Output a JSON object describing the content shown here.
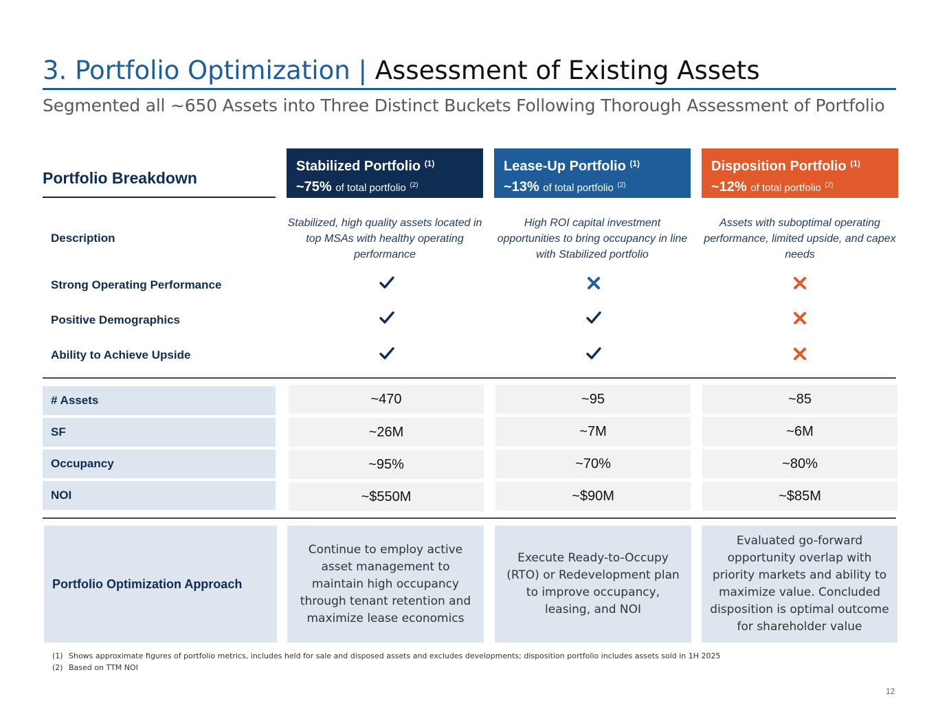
{
  "title": {
    "lead": "3. Portfolio Optimization",
    "separator": "|",
    "rest": "Assessment of Existing Assets"
  },
  "subtitle": "Segmented all ~650 Assets into Three Distinct Buckets Following Thorough Assessment of Portfolio",
  "breakdown_label": "Portfolio Breakdown",
  "columns": [
    {
      "name": "Stabilized Portfolio",
      "name_note": "(1)",
      "share": "~75%",
      "share_text": "of total portfolio",
      "share_note": "(2)",
      "color": "#0f2d52",
      "description": "Stabilized, high quality assets located in top MSAs with healthy operating performance",
      "checks": [
        "check",
        "check",
        "check"
      ],
      "metrics": [
        "~470",
        "~26M",
        "~95%",
        "~$550M"
      ],
      "approach": "Continue to employ active asset management to maintain high occupancy through tenant retention and maximize lease economics"
    },
    {
      "name": "Lease-Up Portfolio",
      "name_note": "(1)",
      "share": "~13%",
      "share_text": "of total portfolio",
      "share_note": "(2)",
      "color": "#1f5d9a",
      "description": "High ROI capital investment opportunities to bring occupancy in line with Stabilized portfolio",
      "checks": [
        "cross",
        "check",
        "check"
      ],
      "metrics": [
        "~95",
        "~7M",
        "~70%",
        "~$90M"
      ],
      "approach": "Execute Ready-to-Occupy (RTO) or Redevelopment plan to improve occupancy, leasing, and NOI"
    },
    {
      "name": "Disposition Portfolio",
      "name_note": "(1)",
      "share": "~12%",
      "share_text": "of total portfolio",
      "share_note": "(2)",
      "color": "#e05a2b",
      "description": "Assets with suboptimal operating performance, limited upside, and capex needs",
      "checks": [
        "cross",
        "cross",
        "cross"
      ],
      "metrics": [
        "~85",
        "~6M",
        "~80%",
        "~$85M"
      ],
      "approach": "Evaluated go-forward opportunity overlap with priority markets and ability to maximize value. Concluded disposition is optimal outcome for shareholder value"
    }
  ],
  "criteria_labels": [
    "Description",
    "Strong Operating Performance",
    "Positive Demographics",
    "Ability to Achieve Upside"
  ],
  "metric_labels": [
    "# Assets",
    "SF",
    "Occupancy",
    "NOI"
  ],
  "approach_label": "Portfolio Optimization Approach",
  "footnotes": [
    {
      "num": "(1)",
      "text": "Shows approximate figures of portfolio metrics, includes held for sale and disposed assets and excludes developments; disposition portfolio includes assets sold in 1H 2025"
    },
    {
      "num": "(2)",
      "text": "Based on TTM NOI"
    }
  ],
  "page_number": "12",
  "colors": {
    "navy": "#0f2d52",
    "blue": "#1f5d9a",
    "orange": "#e05a2b"
  }
}
